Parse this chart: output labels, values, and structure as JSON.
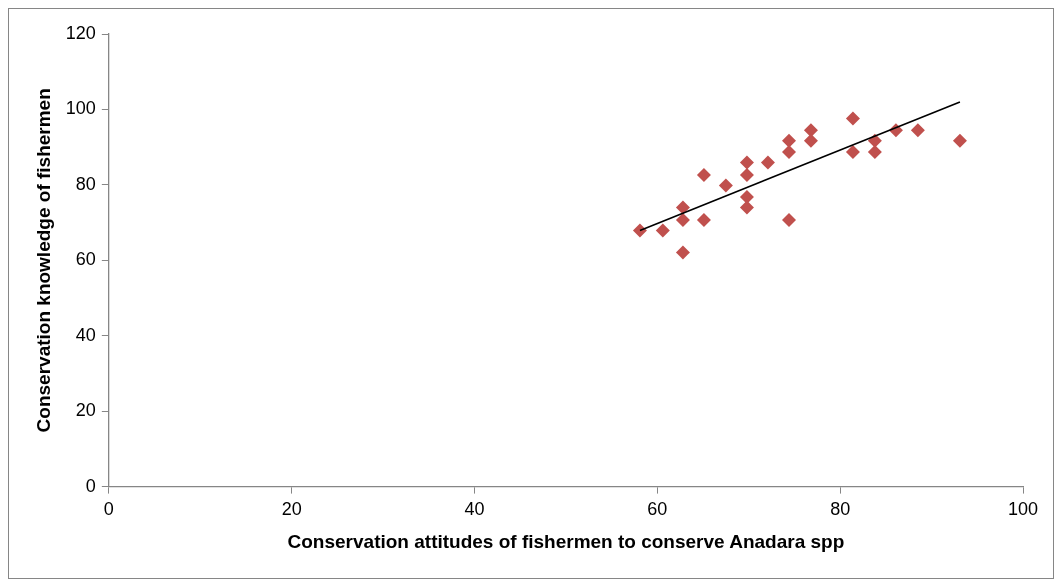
{
  "chart_data": {
    "type": "scatter",
    "xlabel": "Conservation attitudes of fishermen to conserve Anadara spp",
    "ylabel": "Conservation knowledge of fishermen",
    "xlim": [
      0,
      100
    ],
    "xticks": [
      0,
      20,
      40,
      60,
      80,
      100
    ],
    "ylim": [
      0,
      120
    ],
    "yticks": [
      0,
      20,
      40,
      60,
      80,
      100,
      120
    ],
    "marker": "diamond",
    "grid": false,
    "series": [
      {
        "color": "#c0504d",
        "x": [
          58.1,
          60.6,
          62.8,
          62.8,
          62.8,
          65.1,
          65.1,
          67.5,
          69.8,
          69.8,
          69.8,
          69.8,
          72.1,
          74.4,
          74.4,
          74.4,
          76.8,
          76.8,
          81.4,
          81.4,
          83.8,
          83.8,
          86.1,
          88.5,
          93.1
        ],
        "values": [
          67.9,
          67.9,
          74.0,
          70.7,
          62.1,
          82.6,
          70.7,
          79.8,
          85.9,
          82.6,
          76.8,
          74.0,
          85.9,
          91.7,
          88.7,
          70.7,
          94.5,
          91.7,
          97.6,
          88.7,
          91.7,
          88.7,
          94.5,
          94.5,
          91.7
        ]
      },
      {
        "type": "line",
        "color": "#000000",
        "marker": "none",
        "x": [
          58.1,
          93.1
        ],
        "values": [
          67.9,
          102.0
        ]
      }
    ]
  }
}
